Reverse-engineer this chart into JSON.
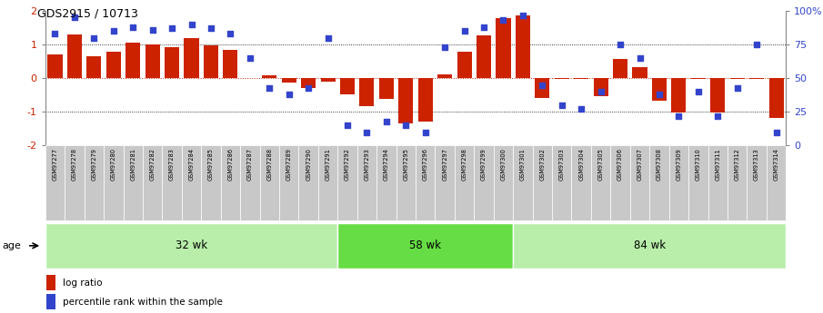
{
  "title": "GDS2915 / 10713",
  "samples": [
    "GSM97277",
    "GSM97278",
    "GSM97279",
    "GSM97280",
    "GSM97281",
    "GSM97282",
    "GSM97283",
    "GSM97284",
    "GSM97285",
    "GSM97286",
    "GSM97287",
    "GSM97288",
    "GSM97289",
    "GSM97290",
    "GSM97291",
    "GSM97292",
    "GSM97293",
    "GSM97294",
    "GSM97295",
    "GSM97296",
    "GSM97297",
    "GSM97298",
    "GSM97299",
    "GSM97300",
    "GSM97301",
    "GSM97302",
    "GSM97303",
    "GSM97304",
    "GSM97305",
    "GSM97306",
    "GSM97307",
    "GSM97308",
    "GSM97309",
    "GSM97310",
    "GSM97311",
    "GSM97312",
    "GSM97313",
    "GSM97314"
  ],
  "log_ratio": [
    0.7,
    1.3,
    0.65,
    0.78,
    1.05,
    1.0,
    0.93,
    1.2,
    0.97,
    0.83,
    0.0,
    0.08,
    -0.12,
    -0.28,
    -0.1,
    -0.48,
    -0.82,
    -0.62,
    -1.35,
    -1.28,
    0.12,
    0.8,
    1.28,
    1.78,
    1.88,
    -0.58,
    -0.03,
    -0.03,
    -0.53,
    0.58,
    0.33,
    -0.68,
    -1.03,
    -0.03,
    -1.03,
    -0.03,
    -0.03,
    -1.18
  ],
  "percentile": [
    83,
    95,
    80,
    85,
    88,
    86,
    87,
    90,
    87,
    83,
    65,
    43,
    38,
    43,
    80,
    15,
    10,
    18,
    15,
    10,
    73,
    85,
    88,
    93,
    97,
    45,
    30,
    27,
    40,
    75,
    65,
    38,
    22,
    40,
    22,
    43,
    75,
    10
  ],
  "groups": [
    {
      "label": "32 wk",
      "start": 0,
      "end": 15,
      "color": "#b8eeaa"
    },
    {
      "label": "58 wk",
      "start": 15,
      "end": 24,
      "color": "#66dd44"
    },
    {
      "label": "84 wk",
      "start": 24,
      "end": 38,
      "color": "#b8eeaa"
    }
  ],
  "bar_color": "#cc2200",
  "dot_color": "#3344cc",
  "bg_plot": "#ffffff",
  "bg_ticks": "#c8c8c8",
  "ylim": [
    -2,
    2
  ],
  "right_ylim": [
    0,
    100
  ],
  "yticks_left": [
    -2,
    -1,
    0,
    1,
    2
  ],
  "yticks_right": [
    0,
    25,
    50,
    75,
    100
  ],
  "ytick_right_labels": [
    "0",
    "25",
    "50",
    "75",
    "100%"
  ],
  "hlines_dotted": [
    -1,
    1
  ],
  "hline_zero": 0,
  "legend_log_ratio": "log ratio",
  "legend_percentile": "percentile rank within the sample",
  "age_label": "age"
}
